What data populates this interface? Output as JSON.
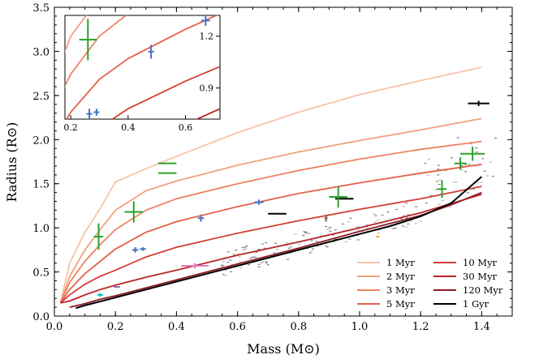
{
  "chart_data": {
    "type": "line",
    "xlabel": "Mass (M⊙)",
    "ylabel": "Radius (R⊙)",
    "xlim": [
      0.0,
      1.5
    ],
    "ylim": [
      0.0,
      3.5
    ],
    "xticks": [
      0.0,
      0.2,
      0.4,
      0.6,
      0.8,
      1.0,
      1.2,
      1.4
    ],
    "xtick_labels": [
      "0.0",
      "0.2",
      "0.4",
      "0.6",
      "0.8",
      "1.0",
      "1.2",
      "1.4"
    ],
    "yticks": [
      0.0,
      0.5,
      1.0,
      1.5,
      2.0,
      2.5,
      3.0,
      3.5
    ],
    "ytick_labels": [
      "0.0",
      "0.5",
      "1.0",
      "1.5",
      "2.0",
      "2.5",
      "3.0",
      "3.5"
    ],
    "legend_position": "bottom-right",
    "series": [
      {
        "name": "1 Myr",
        "color": "#f7c4a9",
        "x": [
          0.02,
          0.05,
          0.1,
          0.15,
          0.2,
          0.3,
          0.4,
          0.6,
          0.8,
          1.0,
          1.2,
          1.4
        ],
        "y": [
          0.15,
          0.6,
          0.95,
          1.22,
          1.52,
          1.67,
          1.81,
          2.08,
          2.31,
          2.51,
          2.67,
          2.82
        ]
      },
      {
        "name": "2 Myr",
        "color": "#f4a07f",
        "x": [
          0.02,
          0.05,
          0.1,
          0.15,
          0.2,
          0.3,
          0.4,
          0.6,
          0.8,
          1.0,
          1.2,
          1.4
        ],
        "y": [
          0.15,
          0.45,
          0.75,
          0.98,
          1.2,
          1.42,
          1.53,
          1.71,
          1.86,
          1.99,
          2.11,
          2.24
        ]
      },
      {
        "name": "3 Myr",
        "color": "#ef8261",
        "x": [
          0.02,
          0.05,
          0.1,
          0.15,
          0.2,
          0.3,
          0.4,
          0.6,
          0.8,
          1.0,
          1.2,
          1.4
        ],
        "y": [
          0.15,
          0.38,
          0.62,
          0.81,
          0.98,
          1.2,
          1.33,
          1.5,
          1.65,
          1.78,
          1.89,
          1.98
        ]
      },
      {
        "name": "5 Myr",
        "color": "#e56149",
        "x": [
          0.02,
          0.05,
          0.1,
          0.15,
          0.2,
          0.3,
          0.4,
          0.6,
          0.8,
          1.0,
          1.2,
          1.4
        ],
        "y": [
          0.15,
          0.3,
          0.48,
          0.62,
          0.76,
          0.95,
          1.07,
          1.24,
          1.39,
          1.51,
          1.62,
          1.72
        ]
      },
      {
        "name": "10 Myr",
        "color": "#d33f35",
        "x": [
          0.02,
          0.05,
          0.1,
          0.15,
          0.2,
          0.3,
          0.4,
          0.6,
          0.8,
          1.0,
          1.2,
          1.4
        ],
        "y": [
          0.15,
          0.24,
          0.36,
          0.45,
          0.52,
          0.67,
          0.78,
          0.94,
          1.08,
          1.21,
          1.33,
          1.47
        ]
      },
      {
        "name": "30 Myr",
        "color": "#b9252b",
        "x": [
          0.02,
          0.05,
          0.1,
          0.15,
          0.2,
          0.3,
          0.4,
          0.6,
          0.8,
          1.0,
          1.2,
          1.4
        ],
        "y": [
          0.15,
          0.17,
          0.24,
          0.3,
          0.35,
          0.44,
          0.52,
          0.69,
          0.84,
          1.0,
          1.17,
          1.38
        ]
      },
      {
        "name": "120 Myr",
        "color": "#8e1a23",
        "x": [
          0.05,
          0.1,
          0.15,
          0.2,
          0.3,
          0.4,
          0.6,
          0.8,
          1.0,
          1.1,
          1.2,
          1.3,
          1.4
        ],
        "y": [
          0.1,
          0.14,
          0.19,
          0.23,
          0.32,
          0.41,
          0.59,
          0.77,
          0.96,
          1.05,
          1.14,
          1.26,
          1.4
        ]
      },
      {
        "name": "1 Gyr",
        "color": "#000000",
        "x": [
          0.07,
          0.1,
          0.2,
          0.3,
          0.4,
          0.6,
          0.8,
          1.0,
          1.1,
          1.2,
          1.3,
          1.4
        ],
        "y": [
          0.09,
          0.12,
          0.21,
          0.3,
          0.39,
          0.57,
          0.75,
          0.93,
          1.02,
          1.13,
          1.28,
          1.58
        ]
      }
    ],
    "measurements": [
      {
        "x": 0.145,
        "y": 0.9,
        "xerr": 0.015,
        "yerr": 0.15,
        "color": "#2ca02c"
      },
      {
        "x": 0.26,
        "y": 1.18,
        "xerr": 0.03,
        "yerr": 0.12,
        "color": "#2ca02c"
      },
      {
        "x": 0.37,
        "y": 1.73,
        "xerr": 0.03,
        "yerr": 0.0,
        "color": "#2ca02c"
      },
      {
        "x": 0.37,
        "y": 1.62,
        "xerr": 0.03,
        "yerr": 0.0,
        "color": "#2ca02c"
      },
      {
        "x": 0.48,
        "y": 1.11,
        "xerr": 0.01,
        "yerr": 0.04,
        "color": "#4472c4"
      },
      {
        "x": 0.67,
        "y": 1.29,
        "xerr": 0.015,
        "yerr": 0.03,
        "color": "#4472c4"
      },
      {
        "x": 0.265,
        "y": 0.75,
        "xerr": 0.01,
        "yerr": 0.03,
        "color": "#4472c4"
      },
      {
        "x": 0.29,
        "y": 0.76,
        "xerr": 0.01,
        "yerr": 0.02,
        "color": "#4472c4"
      },
      {
        "x": 0.73,
        "y": 1.16,
        "xerr": 0.03,
        "yerr": 0.0,
        "color": "#000000"
      },
      {
        "x": 0.95,
        "y": 1.33,
        "xerr": 0.03,
        "yerr": 0.0,
        "color": "#000000"
      },
      {
        "x": 1.39,
        "y": 2.41,
        "xerr": 0.035,
        "yerr": 0.03,
        "color": "#000000"
      },
      {
        "x": 0.93,
        "y": 1.35,
        "xerr": 0.03,
        "yerr": 0.12,
        "color": "#2ca02c"
      },
      {
        "x": 1.27,
        "y": 1.44,
        "xerr": 0.015,
        "yerr": 0.1,
        "color": "#2ca02c"
      },
      {
        "x": 1.33,
        "y": 1.73,
        "xerr": 0.02,
        "yerr": 0.07,
        "color": "#2ca02c"
      },
      {
        "x": 1.37,
        "y": 1.84,
        "xerr": 0.04,
        "yerr": 0.08,
        "color": "#2ca02c"
      },
      {
        "x": 0.46,
        "y": 0.57,
        "xerr": 0.045,
        "yerr": 0.03,
        "color": "#e377c2"
      },
      {
        "x": 0.15,
        "y": 0.24,
        "xerr": 0.01,
        "yerr": 0.02,
        "color": "#17becf"
      },
      {
        "x": 0.205,
        "y": 0.33,
        "xerr": 0.01,
        "yerr": 0.0,
        "color": "#9467bd"
      },
      {
        "x": 0.89,
        "y": 1.11,
        "xerr": 0.005,
        "yerr": 0.04,
        "color": "#8c564b"
      },
      {
        "x": 1.06,
        "y": 0.9,
        "xerr": 0.005,
        "yerr": 0.0,
        "color": "#ff9900"
      }
    ],
    "inset": {
      "xlim": [
        0.18,
        0.72
      ],
      "ylim": [
        0.72,
        1.32
      ],
      "xticks": [
        0.2,
        0.4,
        0.6
      ],
      "xtick_labels": [
        "0.2",
        "0.4",
        "0.6"
      ],
      "yticks": [
        0.9,
        1.2
      ],
      "ytick_labels": [
        "0.9",
        "1.2"
      ]
    }
  }
}
